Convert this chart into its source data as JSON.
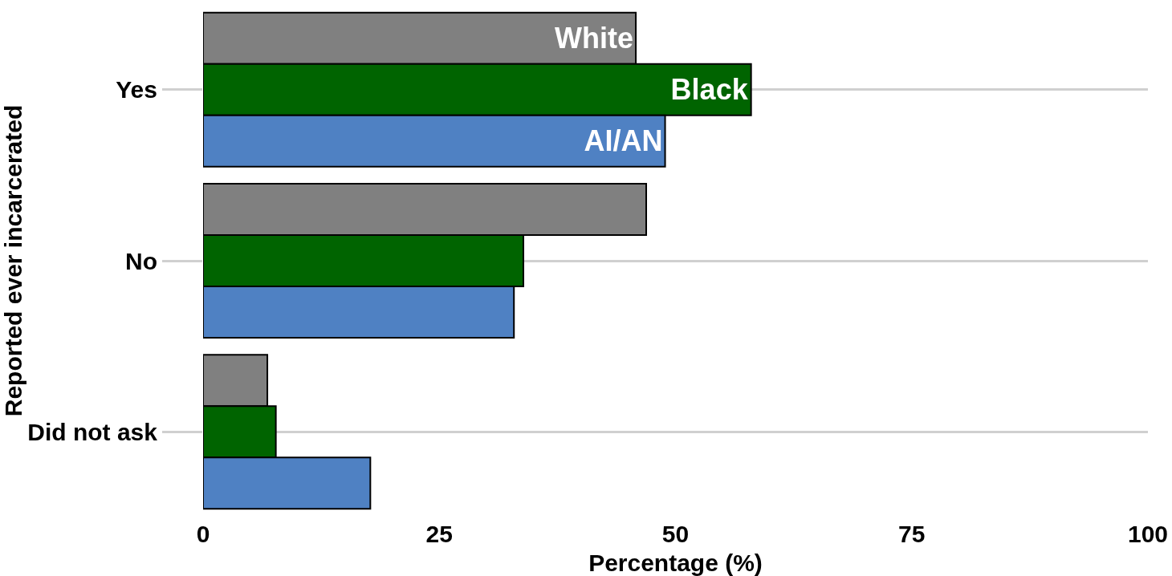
{
  "chart_data": {
    "type": "bar",
    "orientation": "horizontal",
    "xlabel": "Percentage (%)",
    "ylabel": "Reported ever incarcerated",
    "categories": [
      "Yes",
      "No",
      "Did not ask"
    ],
    "series": [
      {
        "name": "White",
        "color": "#808080",
        "values": [
          45.8,
          46.9,
          6.8
        ]
      },
      {
        "name": "Black",
        "color": "#006400",
        "values": [
          58.0,
          33.9,
          7.7
        ]
      },
      {
        "name": "AI/AN",
        "color": "#4f81c3",
        "values": [
          48.9,
          32.9,
          17.7
        ]
      }
    ],
    "xlim": [
      0,
      100
    ],
    "xticks": [
      0,
      25,
      50,
      75,
      100
    ],
    "grid": "y",
    "legend": false
  }
}
